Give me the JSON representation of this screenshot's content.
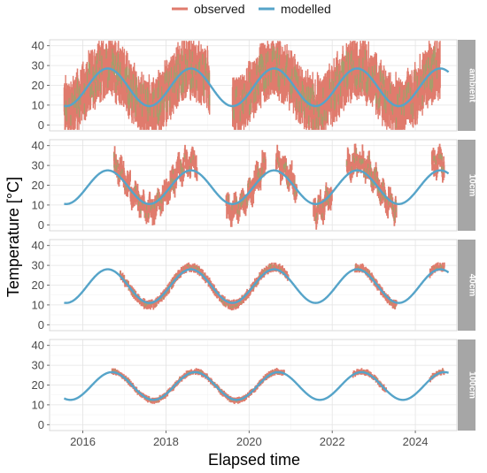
{
  "chart_data": {
    "type": "line",
    "facet_by": "depth",
    "xlabel": "Elapsed time",
    "ylabel": "Temperature [°C]",
    "xlim": [
      2015.2,
      2025.0
    ],
    "ylim": [
      -3,
      43
    ],
    "x_ticks": [
      2016,
      2018,
      2020,
      2022,
      2024
    ],
    "x_tick_labels": [
      "2016",
      "2018",
      "2020",
      "2022",
      "2024"
    ],
    "y_ticks": [
      0,
      10,
      20,
      30,
      40
    ],
    "y_tick_labels": [
      "0",
      "10",
      "20",
      "30",
      "40"
    ],
    "grid": true,
    "legend": {
      "position": "top",
      "entries": [
        {
          "label": "observed",
          "color": "#E07B6D"
        },
        {
          "label": "modelled",
          "color": "#56A4C9"
        }
      ]
    },
    "series_style": {
      "observed": {
        "color": "#E07B6D",
        "green_tint": "#9AA56B"
      },
      "modelled": {
        "color": "#56A4C9"
      }
    },
    "modelled_period_years": 2,
    "x_range_data": [
      2015.55,
      2024.8
    ],
    "panels": [
      {
        "label": "ambient",
        "modelled": {
          "mean": 19,
          "amplitude": 9.5,
          "peak_year": 2016.6
        },
        "observed": {
          "segments": [
            [
              2015.55,
              2019.05
            ],
            [
              2019.6,
              2024.6
            ]
          ],
          "mean": 19,
          "amplitude": 10,
          "spread": 9
        }
      },
      {
        "label": "10cm",
        "modelled": {
          "mean": 19,
          "amplitude": 8.5,
          "peak_year": 2016.6
        },
        "observed": {
          "segments": [
            [
              2016.75,
              2018.75
            ],
            [
              2019.45,
              2020.4
            ],
            [
              2020.65,
              2021.15
            ],
            [
              2021.55,
              2022.0
            ],
            [
              2022.35,
              2023.55
            ],
            [
              2024.4,
              2024.7
            ]
          ],
          "mean": 20,
          "amplitude": 12,
          "spread": 4
        }
      },
      {
        "label": "40cm",
        "modelled": {
          "mean": 19.5,
          "amplitude": 8.5,
          "peak_year": 2016.6
        },
        "observed": {
          "segments": [
            [
              2016.9,
              2020.95
            ],
            [
              2022.55,
              2023.55
            ],
            [
              2024.35,
              2024.7
            ]
          ],
          "mean": 19.5,
          "amplitude": 9.5,
          "spread": 1.5
        }
      },
      {
        "label": "100cm",
        "modelled": {
          "mean": 19.5,
          "amplitude": 7,
          "peak_year": 2016.7
        },
        "observed": {
          "segments": [
            [
              2016.7,
              2020.85
            ],
            [
              2022.5,
              2023.3
            ],
            [
              2024.35,
              2024.7
            ]
          ],
          "mean": 19.5,
          "amplitude": 7.3,
          "spread": 1.0
        }
      }
    ]
  }
}
